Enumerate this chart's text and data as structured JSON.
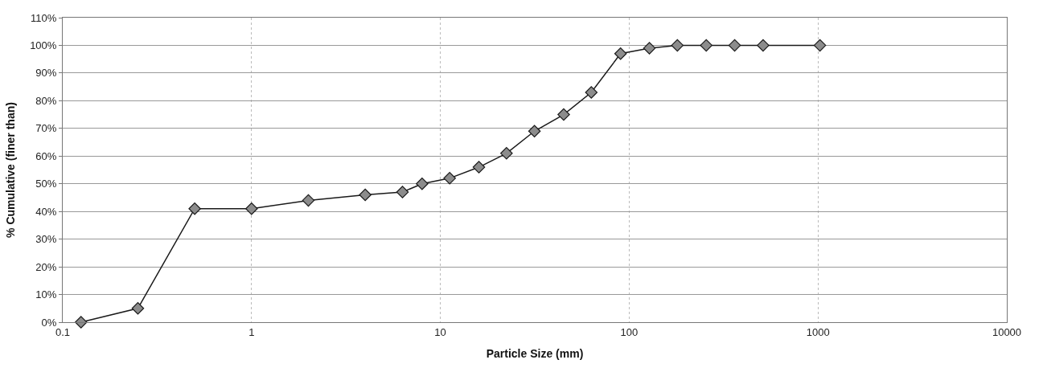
{
  "chart_data": {
    "type": "line",
    "xlabel": "Particle Size (mm)",
    "ylabel": "% Cumulative (finer than)",
    "x": [
      0.125,
      0.25,
      0.5,
      1,
      2,
      4,
      6.3,
      8,
      11.2,
      16,
      22.4,
      31.5,
      45,
      63,
      90,
      128,
      180,
      256,
      362,
      512,
      1024
    ],
    "series": [
      {
        "color": "#1a1a1a",
        "values": [
          0,
          5,
          41,
          41,
          44,
          46,
          47,
          50,
          52,
          56,
          61,
          69,
          75,
          83,
          97,
          99,
          100,
          100,
          100,
          100,
          100
        ]
      }
    ],
    "log": "x",
    "xlim": [
      0.1,
      10000
    ],
    "xticks": [
      0.1,
      1,
      10,
      100,
      1000,
      10000
    ],
    "ylim": [
      0,
      110
    ],
    "yticks": [
      {
        "value": 0,
        "label": "0%"
      },
      {
        "value": 10,
        "label": "10%"
      },
      {
        "value": 20,
        "label": "20%"
      },
      {
        "value": 30,
        "label": "30%"
      },
      {
        "value": 40,
        "label": "40%"
      },
      {
        "value": 50,
        "label": "50%"
      },
      {
        "value": 60,
        "label": "60%"
      },
      {
        "value": 70,
        "label": "70%"
      },
      {
        "value": 80,
        "label": "80%"
      },
      {
        "value": 90,
        "label": "90%"
      },
      {
        "value": 100,
        "label": "100%"
      },
      {
        "value": 110,
        "label": "110%"
      }
    ],
    "grid": true,
    "marker": "diamond",
    "line_style": "solid"
  }
}
